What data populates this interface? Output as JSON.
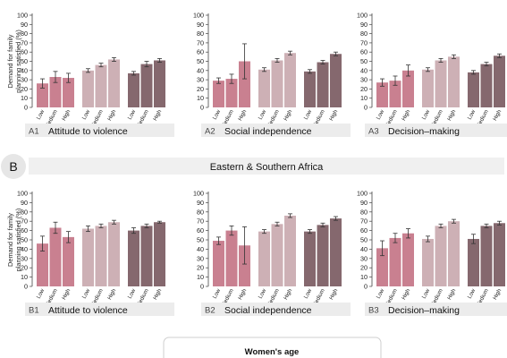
{
  "section_b_label": "B",
  "region_b_title": "Eastern & Southern Africa",
  "legend": {
    "title": "Women's age"
  },
  "colors": {
    "g1": "#c98090",
    "g2": "#cdb0b5",
    "g3": "#85686e"
  },
  "chart_data": [
    {
      "id": "A1",
      "title": "Attitude to violence",
      "type": "bar",
      "ylabel": "Demand for family planning satisfied (%)",
      "ylim": [
        0,
        100
      ],
      "yticks": [
        0,
        10,
        20,
        30,
        40,
        50,
        60,
        70,
        80,
        90,
        100
      ],
      "categories": [
        "Low",
        "Medium",
        "High"
      ],
      "groups": [
        {
          "values": [
            26,
            33,
            32
          ],
          "errors": [
            5,
            6,
            5
          ]
        },
        {
          "values": [
            40,
            46,
            52
          ],
          "errors": [
            2,
            2,
            2
          ]
        },
        {
          "values": [
            37,
            47,
            51
          ],
          "errors": [
            2,
            3,
            2
          ]
        }
      ]
    },
    {
      "id": "A2",
      "title": "Social independence",
      "type": "bar",
      "ylabel": "",
      "ylim": [
        0,
        100
      ],
      "yticks": [
        0,
        10,
        20,
        30,
        40,
        50,
        60,
        70,
        80,
        90,
        100
      ],
      "categories": [
        "Low",
        "Medium",
        "High"
      ],
      "groups": [
        {
          "values": [
            29,
            31,
            50
          ],
          "errors": [
            3,
            5,
            19
          ]
        },
        {
          "values": [
            41,
            51,
            59
          ],
          "errors": [
            2,
            2,
            2
          ]
        },
        {
          "values": [
            39,
            49,
            58
          ],
          "errors": [
            2,
            2,
            2
          ]
        }
      ]
    },
    {
      "id": "A3",
      "title": "Decision–making",
      "type": "bar",
      "ylabel": "",
      "ylim": [
        0,
        100
      ],
      "yticks": [
        0,
        10,
        20,
        30,
        40,
        50,
        60,
        70,
        80,
        90,
        100
      ],
      "categories": [
        "Low",
        "Medium",
        "High"
      ],
      "groups": [
        {
          "values": [
            27,
            29,
            40
          ],
          "errors": [
            4,
            5,
            6
          ]
        },
        {
          "values": [
            41,
            51,
            55
          ],
          "errors": [
            2,
            2,
            2
          ]
        },
        {
          "values": [
            38,
            47,
            56
          ],
          "errors": [
            2,
            2,
            2
          ]
        }
      ]
    },
    {
      "id": "B1",
      "title": "Attitude to violence",
      "type": "bar",
      "ylabel": "Demand for family planning satisfied (%)",
      "ylim": [
        0,
        100
      ],
      "yticks": [
        0,
        10,
        20,
        30,
        40,
        50,
        60,
        70,
        80,
        90,
        100
      ],
      "categories": [
        "Low",
        "Medium",
        "High"
      ],
      "groups": [
        {
          "values": [
            46,
            63,
            53
          ],
          "errors": [
            8,
            6,
            6
          ]
        },
        {
          "values": [
            62,
            65,
            69
          ],
          "errors": [
            3,
            2,
            2
          ]
        },
        {
          "values": [
            60,
            65,
            69
          ],
          "errors": [
            3,
            2,
            1
          ]
        }
      ]
    },
    {
      "id": "B2",
      "title": "Social independence",
      "type": "bar",
      "ylabel": "",
      "ylim": [
        0,
        100
      ],
      "yticks": [
        0,
        10,
        20,
        30,
        40,
        50,
        60,
        70,
        80,
        90,
        100
      ],
      "categories": [
        "Low",
        "Medium",
        "High"
      ],
      "groups": [
        {
          "values": [
            49,
            60,
            44
          ],
          "errors": [
            4,
            5,
            20
          ]
        },
        {
          "values": [
            59,
            67,
            76
          ],
          "errors": [
            2,
            2,
            2
          ]
        },
        {
          "values": [
            59,
            66,
            73
          ],
          "errors": [
            2,
            2,
            2
          ]
        }
      ]
    },
    {
      "id": "B3",
      "title": "Decision–making",
      "type": "bar",
      "ylabel": "",
      "ylim": [
        0,
        100
      ],
      "yticks": [
        0,
        10,
        20,
        30,
        40,
        50,
        60,
        70,
        80,
        90,
        100
      ],
      "categories": [
        "Low",
        "Medium",
        "High"
      ],
      "groups": [
        {
          "values": [
            41,
            52,
            57
          ],
          "errors": [
            8,
            5,
            5
          ]
        },
        {
          "values": [
            51,
            65,
            70
          ],
          "errors": [
            3,
            2,
            2
          ]
        },
        {
          "values": [
            51,
            65,
            68
          ],
          "errors": [
            5,
            2,
            2
          ]
        }
      ]
    }
  ]
}
